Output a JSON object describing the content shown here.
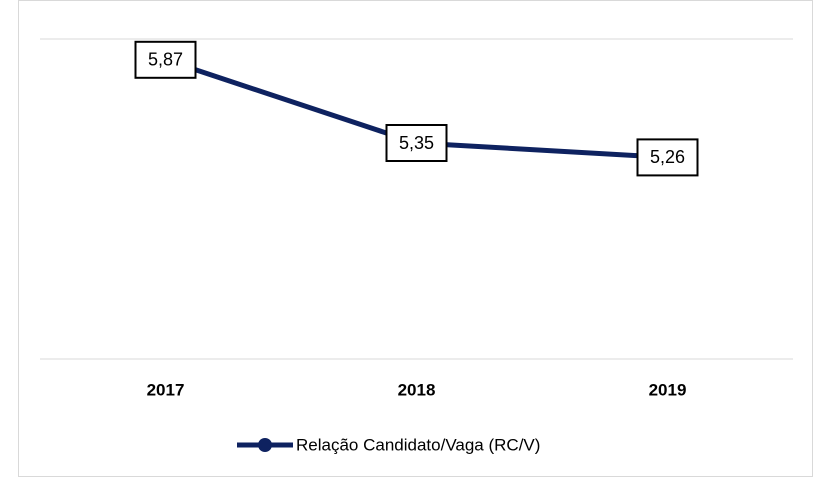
{
  "chart_data": {
    "type": "line",
    "categories": [
      "2017",
      "2018",
      "2019"
    ],
    "series": [
      {
        "name": "Relação Candidato/Vaga (RC/V)",
        "color": "#0e2260",
        "values": [
          5.87,
          5.35,
          5.26
        ],
        "value_labels": [
          "5,87",
          "5,35",
          "5,26"
        ]
      }
    ],
    "ylim": [
      4,
      6
    ],
    "grid": true,
    "legend": "bottom"
  }
}
